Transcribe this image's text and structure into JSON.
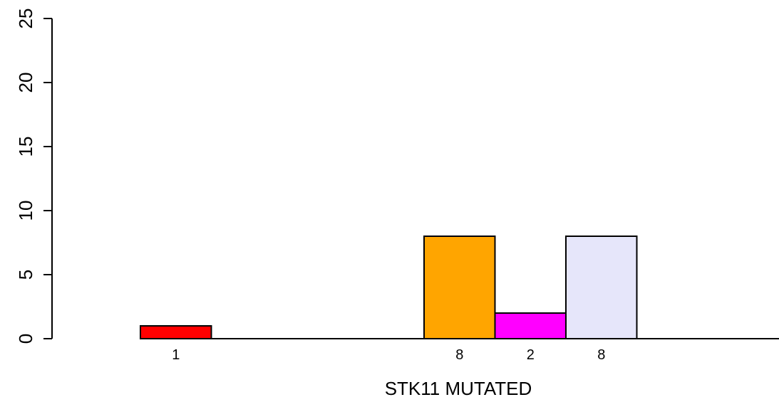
{
  "chart_data": {
    "type": "bar",
    "title": "",
    "xlabel": "STK11 MUTATED",
    "ylabel": "",
    "ylim": [
      0,
      25
    ],
    "yticks": [
      "0",
      "5",
      "10",
      "15",
      "20",
      "25"
    ],
    "bars": [
      {
        "slot": 1,
        "value": 1,
        "label": "1",
        "color": "#FF0000"
      },
      {
        "slot": 2,
        "value": 0,
        "label": "",
        "color": "#FFFFFF"
      },
      {
        "slot": 3,
        "value": 0,
        "label": "",
        "color": "#FFFFFF"
      },
      {
        "slot": 4,
        "value": 0,
        "label": "",
        "color": "#FFFFFF"
      },
      {
        "slot": 5,
        "value": 8,
        "label": "8",
        "color": "#FFA500"
      },
      {
        "slot": 6,
        "value": 2,
        "label": "2",
        "color": "#FF00FF"
      },
      {
        "slot": 7,
        "value": 8,
        "label": "8",
        "color": "#E6E6FA"
      },
      {
        "slot": 8,
        "value": 0,
        "label": "",
        "color": "#FFFFFF"
      },
      {
        "slot": 9,
        "value": 0,
        "label": "",
        "color": "#FFFFFF"
      }
    ],
    "grid": false,
    "legend": "none"
  }
}
